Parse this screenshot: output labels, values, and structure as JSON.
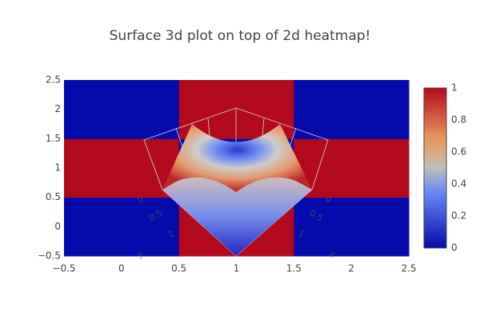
{
  "chart_data": {
    "type": "heatmap",
    "title": "Surface 3d plot on top of 2d heatmap!",
    "x": [
      0,
      1,
      2
    ],
    "y": [
      0,
      1,
      2
    ],
    "z": [
      [
        0,
        1,
        0
      ],
      [
        1,
        0,
        1
      ],
      [
        0,
        1,
        0
      ]
    ],
    "colorscale": [
      [
        0,
        "rgb(5,10,172)"
      ],
      [
        0.35,
        "rgb(106,137,247)"
      ],
      [
        0.5,
        "rgb(190,190,190)"
      ],
      [
        0.6,
        "rgb(220,170,132)"
      ],
      [
        0.7,
        "rgb(230,145,90)"
      ],
      [
        1,
        "rgb(178,10,28)"
      ]
    ],
    "xlim": [
      -0.5,
      2.5
    ],
    "xticks": [
      {
        "value": -0.5,
        "label": "−0.5"
      },
      0,
      0.5,
      1,
      1.5,
      2,
      2.5
    ],
    "ylim": [
      -0.5,
      2.5
    ],
    "yticks": [
      {
        "value": -0.5,
        "label": "−0.5"
      },
      0,
      0.5,
      1,
      1.5,
      2,
      2.5
    ],
    "zlim": [
      0,
      1
    ],
    "colorbar_ticks": [
      0,
      0.2,
      0.4,
      0.6,
      0.8,
      1
    ],
    "scene_labels": [
      "x",
      "y",
      "0",
      "0.5",
      "1",
      "0",
      "0.5",
      "1"
    ]
  }
}
